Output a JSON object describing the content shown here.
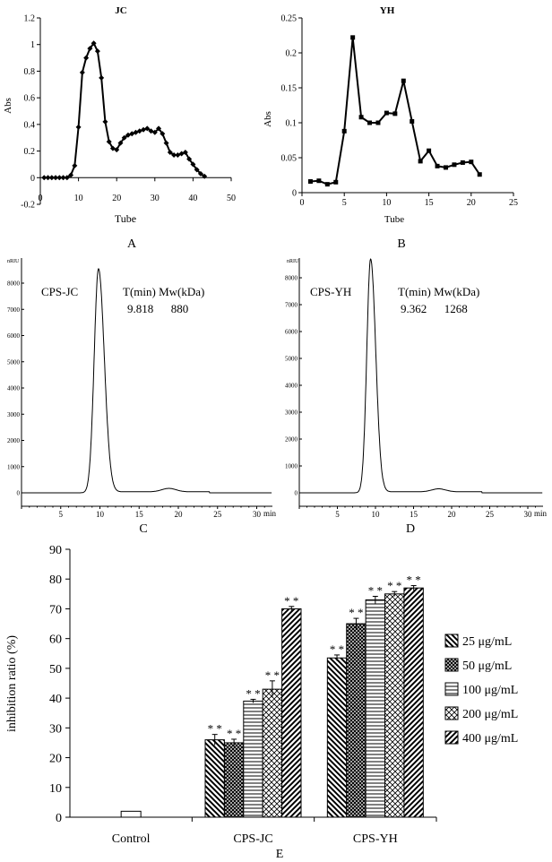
{
  "panel_labels": {
    "a": "A",
    "b": "B",
    "c": "C",
    "d": "D",
    "e": "E"
  },
  "chart_data": [
    {
      "id": "A",
      "type": "line",
      "title": "JC",
      "xlabel": "Tube",
      "ylabel": "Abs",
      "xlim": [
        0,
        50
      ],
      "ylim": [
        -0.2,
        1.2
      ],
      "xticks": [
        0,
        10,
        20,
        30,
        40,
        50
      ],
      "yticks": [
        -0.2,
        0,
        0.2,
        0.4,
        0.6,
        0.8,
        1,
        1.2
      ],
      "ytick_labels": [
        "-0.2",
        "0",
        "0.2",
        "0.4",
        "0.6",
        "0.8",
        "1",
        "1.2"
      ],
      "marker": "diamond",
      "grid": false,
      "x": [
        1,
        2,
        3,
        4,
        5,
        6,
        7,
        8,
        9,
        10,
        11,
        12,
        13,
        14,
        15,
        16,
        17,
        18,
        19,
        20,
        21,
        22,
        23,
        24,
        25,
        26,
        27,
        28,
        29,
        30,
        31,
        32,
        33,
        34,
        35,
        36,
        37,
        38,
        39,
        40,
        41,
        42,
        43
      ],
      "y": [
        0,
        0,
        0,
        0,
        0,
        0,
        0,
        0.02,
        0.09,
        0.38,
        0.79,
        0.9,
        0.97,
        1.01,
        0.95,
        0.75,
        0.42,
        0.27,
        0.22,
        0.21,
        0.26,
        0.3,
        0.32,
        0.33,
        0.34,
        0.35,
        0.36,
        0.37,
        0.35,
        0.34,
        0.37,
        0.33,
        0.26,
        0.19,
        0.17,
        0.17,
        0.18,
        0.19,
        0.14,
        0.1,
        0.06,
        0.03,
        0.01
      ]
    },
    {
      "id": "B",
      "type": "line",
      "title": "YH",
      "xlabel": "Tube",
      "ylabel": "Abs",
      "xlim": [
        0,
        25
      ],
      "ylim": [
        0,
        0.25
      ],
      "xticks": [
        0,
        5,
        10,
        15,
        20,
        25
      ],
      "yticks": [
        0,
        0.05,
        0.1,
        0.15,
        0.2,
        0.25
      ],
      "ytick_labels": [
        "0",
        "0.05",
        "0.1",
        "0.15",
        "0.2",
        "0.25"
      ],
      "marker": "square",
      "grid": false,
      "x": [
        1,
        2,
        3,
        4,
        5,
        6,
        7,
        8,
        9,
        10,
        11,
        12,
        13,
        14,
        15,
        16,
        17,
        18,
        19,
        20,
        21
      ],
      "y": [
        0.016,
        0.017,
        0.012,
        0.015,
        0.088,
        0.222,
        0.108,
        0.1,
        0.1,
        0.114,
        0.113,
        0.16,
        0.102,
        0.045,
        0.06,
        0.038,
        0.036,
        0.04,
        0.043,
        0.044,
        0.026
      ]
    },
    {
      "id": "C",
      "type": "line",
      "sample": "CPS-JC",
      "xunit": "min",
      "yunit": "nRIU",
      "xlim": [
        0,
        32
      ],
      "ylim": [
        -200,
        8800
      ],
      "xticks": [
        0,
        5,
        10,
        15,
        20,
        25,
        30
      ],
      "xtick_labels": [
        "0",
        "5",
        "10",
        "15",
        "20",
        "25",
        "30"
      ],
      "yticks": [
        0,
        1000,
        2000,
        3000,
        4000,
        5000,
        6000,
        7000,
        8000
      ],
      "table_header": "T(min) Mw(kDa)",
      "table_row": "9.818      880",
      "peak_retention_time": 9.818,
      "peak_height": 8550,
      "peak_width": 0.55,
      "secondary_peak": {
        "x": 18.8,
        "height": 130,
        "width": 0.9
      },
      "grid": false
    },
    {
      "id": "D",
      "type": "line",
      "sample": "CPS-YH",
      "xunit": "min",
      "yunit": "nRIU",
      "xlim": [
        0,
        32
      ],
      "ylim": [
        -200,
        8800
      ],
      "xticks": [
        0,
        5,
        10,
        15,
        20,
        25,
        30
      ],
      "xtick_labels": [
        "0",
        "5",
        "10",
        "15",
        "20",
        "25",
        "30"
      ],
      "yticks": [
        0,
        1000,
        2000,
        3000,
        4000,
        5000,
        6000,
        7000,
        8000
      ],
      "table_header": "T(min) Mw(kDa)",
      "table_row": "9.362      1268",
      "peak_retention_time": 9.362,
      "peak_height": 8700,
      "peak_width": 0.5,
      "secondary_peak": {
        "x": 18.3,
        "height": 110,
        "width": 0.9
      },
      "grid": false
    },
    {
      "id": "E",
      "type": "bar",
      "ylabel": "inhibition ratio (%)",
      "ylim": [
        0,
        90
      ],
      "yticks": [
        0,
        10,
        20,
        30,
        40,
        50,
        60,
        70,
        80,
        90
      ],
      "categories": [
        "Control",
        "CPS-JC",
        "CPS-YH"
      ],
      "legend_placement": "right",
      "grid": false,
      "control": {
        "value": 2.0
      },
      "series": [
        {
          "name": "25 μg/mL",
          "pattern": "diag-back",
          "values": [
            null,
            26.0,
            53.5
          ],
          "errors": [
            null,
            1.8,
            1.0
          ],
          "marks": [
            null,
            "* *",
            "* *"
          ]
        },
        {
          "name": "50 μg/mL",
          "pattern": "crosshatch",
          "values": [
            null,
            25.0,
            65.0
          ],
          "errors": [
            null,
            1.2,
            1.8
          ],
          "marks": [
            null,
            "* *",
            "* *"
          ]
        },
        {
          "name": "100 μg/mL",
          "pattern": "horizontal",
          "values": [
            null,
            39.0,
            73.0
          ],
          "errors": [
            null,
            0.6,
            1.2
          ],
          "marks": [
            null,
            "* *",
            "* *"
          ]
        },
        {
          "name": "200 μg/mL",
          "pattern": "dense-x",
          "values": [
            null,
            43.0,
            75.0
          ],
          "errors": [
            null,
            2.8,
            0.8
          ],
          "marks": [
            null,
            "* *",
            "* *"
          ]
        },
        {
          "name": "400 μg/mL",
          "pattern": "diag-fwd",
          "values": [
            null,
            70.0,
            77.0
          ],
          "errors": [
            null,
            0.8,
            0.8
          ],
          "marks": [
            null,
            "* *",
            "* *"
          ]
        }
      ]
    }
  ]
}
